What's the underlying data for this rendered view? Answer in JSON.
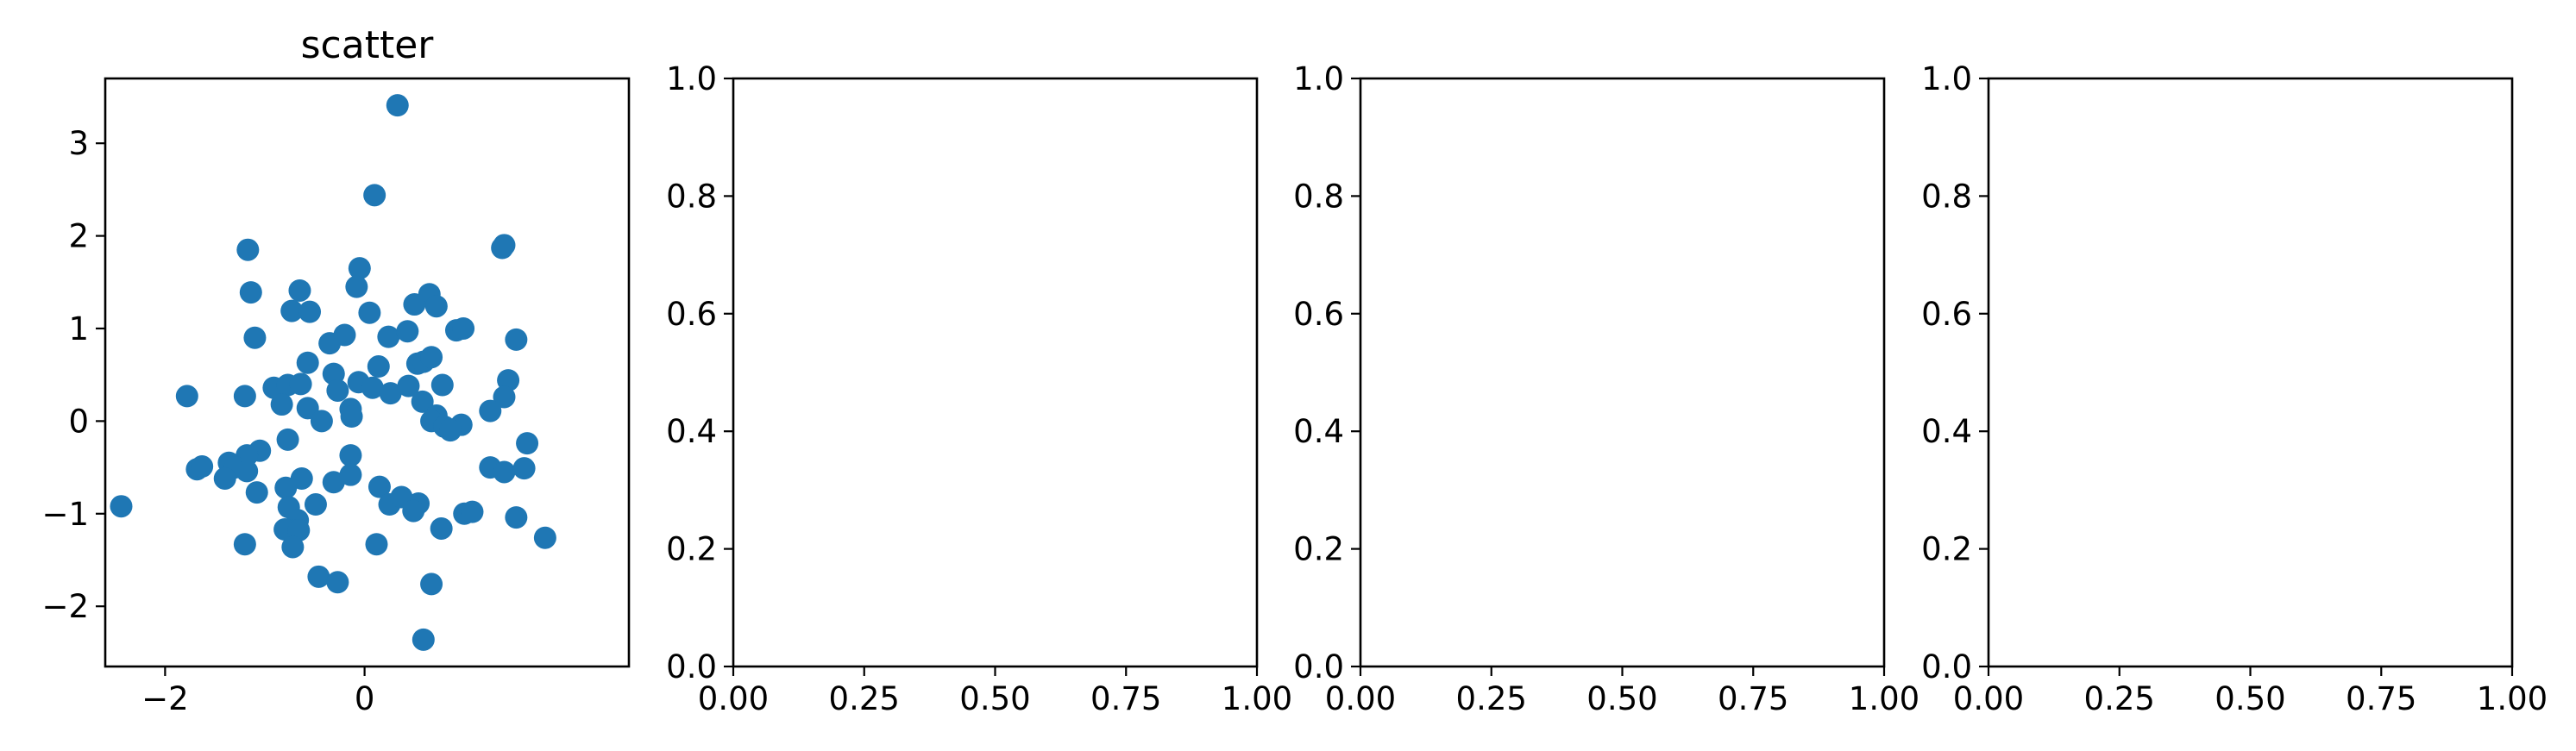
{
  "chart_data": [
    {
      "type": "scatter",
      "title": "scatter",
      "xlabel": "",
      "ylabel": "",
      "xlim": [
        -2.6,
        2.65
      ],
      "ylim": [
        -2.65,
        3.7
      ],
      "xticks": [
        -2,
        0
      ],
      "yticks": [
        -2,
        -1,
        0,
        1,
        2,
        3
      ],
      "xtick_labels": [
        "−2",
        "0"
      ],
      "ytick_labels": [
        "−2",
        "−1",
        "0",
        "1",
        "2",
        "3"
      ],
      "grid": false,
      "color": "#1f77b4",
      "points": [
        [
          0.33,
          3.41
        ],
        [
          0.1,
          2.44
        ],
        [
          -1.17,
          1.85
        ],
        [
          1.4,
          1.9
        ],
        [
          1.38,
          1.87
        ],
        [
          -0.05,
          1.65
        ],
        [
          -0.73,
          1.19
        ],
        [
          -0.65,
          1.41
        ],
        [
          -0.55,
          1.18
        ],
        [
          -0.08,
          1.45
        ],
        [
          0.65,
          1.37
        ],
        [
          0.72,
          1.24
        ],
        [
          0.5,
          1.26
        ],
        [
          0.05,
          1.17
        ],
        [
          -1.14,
          1.39
        ],
        [
          -1.1,
          0.9
        ],
        [
          -0.35,
          0.84
        ],
        [
          -0.2,
          0.93
        ],
        [
          0.24,
          0.91
        ],
        [
          0.43,
          0.97
        ],
        [
          0.92,
          0.98
        ],
        [
          0.99,
          1.0
        ],
        [
          1.52,
          0.88
        ],
        [
          -0.57,
          0.63
        ],
        [
          -0.31,
          0.51
        ],
        [
          0.14,
          0.59
        ],
        [
          0.53,
          0.62
        ],
        [
          0.59,
          0.64
        ],
        [
          0.67,
          0.69
        ],
        [
          -0.91,
          0.36
        ],
        [
          -0.77,
          0.39
        ],
        [
          -0.64,
          0.4
        ],
        [
          -0.27,
          0.33
        ],
        [
          -0.06,
          0.42
        ],
        [
          0.08,
          0.36
        ],
        [
          0.26,
          0.3
        ],
        [
          0.44,
          0.38
        ],
        [
          0.78,
          0.39
        ],
        [
          1.44,
          0.44
        ],
        [
          -1.78,
          0.27
        ],
        [
          -1.2,
          0.27
        ],
        [
          -0.83,
          0.18
        ],
        [
          -0.57,
          0.14
        ],
        [
          -0.14,
          0.13
        ],
        [
          0.58,
          0.21
        ],
        [
          0.72,
          0.06
        ],
        [
          0.97,
          -0.04
        ],
        [
          1.4,
          0.26
        ],
        [
          1.26,
          0.11
        ],
        [
          -0.43,
          0.0
        ],
        [
          -0.13,
          0.05
        ],
        [
          0.67,
          0.0
        ],
        [
          0.8,
          -0.06
        ],
        [
          0.86,
          -0.1
        ],
        [
          -0.77,
          -0.2
        ],
        [
          -1.05,
          -0.32
        ],
        [
          -1.18,
          -0.37
        ],
        [
          -1.36,
          -0.45
        ],
        [
          -1.3,
          -0.5
        ],
        [
          -1.68,
          -0.52
        ],
        [
          -1.63,
          -0.49
        ],
        [
          -1.4,
          -0.62
        ],
        [
          -0.14,
          -0.37
        ],
        [
          -0.31,
          -0.66
        ],
        [
          -0.14,
          -0.58
        ],
        [
          -0.63,
          -0.62
        ],
        [
          -1.18,
          -0.54
        ],
        [
          -1.08,
          -0.77
        ],
        [
          -0.79,
          -0.72
        ],
        [
          0.15,
          -0.71
        ],
        [
          0.25,
          -0.9
        ],
        [
          0.37,
          -0.82
        ],
        [
          0.54,
          -0.89
        ],
        [
          0.49,
          -0.97
        ],
        [
          0.77,
          -1.16
        ],
        [
          1.0,
          -1.0
        ],
        [
          1.08,
          -0.98
        ],
        [
          1.26,
          -0.5
        ],
        [
          1.4,
          -0.55
        ],
        [
          1.6,
          -0.51
        ],
        [
          1.63,
          -0.24
        ],
        [
          1.52,
          -1.04
        ],
        [
          1.81,
          -1.26
        ],
        [
          -2.44,
          -0.92
        ],
        [
          -0.49,
          -0.9
        ],
        [
          -0.76,
          -0.93
        ],
        [
          -0.67,
          -1.07
        ],
        [
          -0.71,
          -1.18
        ],
        [
          -0.8,
          -1.17
        ],
        [
          -0.66,
          -1.18
        ],
        [
          -0.72,
          -1.36
        ],
        [
          -1.2,
          -1.33
        ],
        [
          0.12,
          -1.33
        ],
        [
          -0.46,
          -1.68
        ],
        [
          -0.27,
          -1.74
        ],
        [
          0.67,
          -1.76
        ],
        [
          0.59,
          -2.36
        ]
      ]
    },
    {
      "type": "scatter",
      "title": "",
      "xlabel": "",
      "ylabel": "",
      "xlim": [
        0,
        1
      ],
      "ylim": [
        0,
        1
      ],
      "xticks": [
        0,
        0.25,
        0.5,
        0.75,
        1.0
      ],
      "yticks": [
        0,
        0.2,
        0.4,
        0.6,
        0.8,
        1.0
      ],
      "xtick_labels": [
        "0.00",
        "0.25",
        "0.50",
        "0.75",
        "1.00"
      ],
      "ytick_labels": [
        "0.0",
        "0.2",
        "0.4",
        "0.6",
        "0.8",
        "1.0"
      ],
      "grid": false,
      "points": []
    },
    {
      "type": "scatter",
      "title": "",
      "xlabel": "",
      "ylabel": "",
      "xlim": [
        0,
        1
      ],
      "ylim": [
        0,
        1
      ],
      "xticks": [
        0,
        0.25,
        0.5,
        0.75,
        1.0
      ],
      "yticks": [
        0,
        0.2,
        0.4,
        0.6,
        0.8,
        1.0
      ],
      "xtick_labels": [
        "0.00",
        "0.25",
        "0.50",
        "0.75",
        "1.00"
      ],
      "ytick_labels": [
        "0.0",
        "0.2",
        "0.4",
        "0.6",
        "0.8",
        "1.0"
      ],
      "grid": false,
      "points": []
    },
    {
      "type": "scatter",
      "title": "",
      "xlabel": "",
      "ylabel": "",
      "xlim": [
        0,
        1
      ],
      "ylim": [
        0,
        1
      ],
      "xticks": [
        0,
        0.25,
        0.5,
        0.75,
        1.0
      ],
      "yticks": [
        0,
        0.2,
        0.4,
        0.6,
        0.8,
        1.0
      ],
      "xtick_labels": [
        "0.00",
        "0.25",
        "0.50",
        "0.75",
        "1.00"
      ],
      "ytick_labels": [
        "0.0",
        "0.2",
        "0.4",
        "0.6",
        "0.8",
        "1.0"
      ],
      "grid": false,
      "points": []
    }
  ]
}
